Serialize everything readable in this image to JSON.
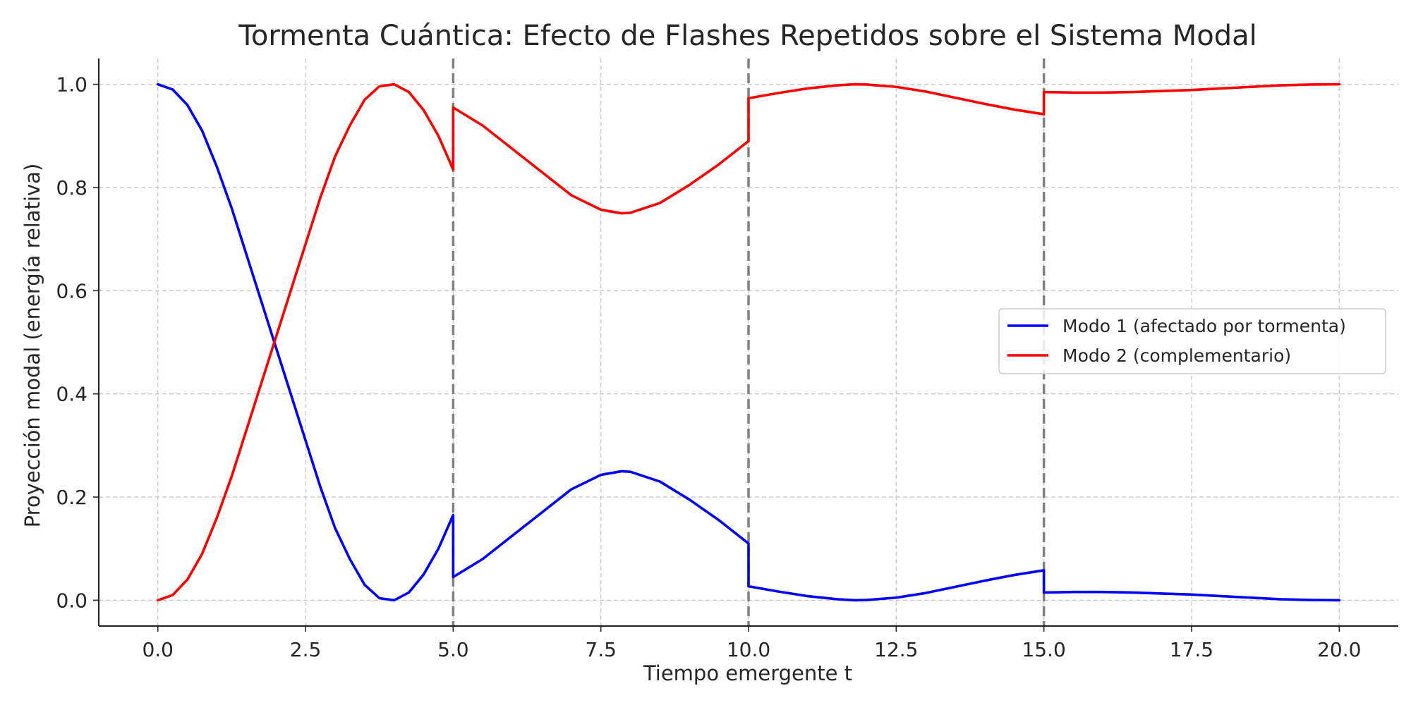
{
  "chart_data": {
    "type": "line",
    "title": "Tormenta Cuántica: Efecto de Flashes Repetidos sobre el Sistema Modal",
    "xlabel": "Tiempo emergente t",
    "ylabel": "Proyección modal (energía relativa)",
    "xlim": [
      -1.0,
      21.0
    ],
    "ylim": [
      -0.05,
      1.05
    ],
    "xticks": [
      0.0,
      2.5,
      5.0,
      7.5,
      10.0,
      12.5,
      15.0,
      17.5,
      20.0
    ],
    "xtick_labels": [
      "0.0",
      "2.5",
      "5.0",
      "7.5",
      "10.0",
      "12.5",
      "15.0",
      "17.5",
      "20.0"
    ],
    "yticks": [
      0.0,
      0.2,
      0.4,
      0.6,
      0.8,
      1.0
    ],
    "ytick_labels": [
      "0.0",
      "0.2",
      "0.4",
      "0.6",
      "0.8",
      "1.0"
    ],
    "grid": true,
    "legend_position": "center-right",
    "flash_times": [
      5.0,
      10.0,
      15.0
    ],
    "flash_color": "#808080",
    "series": [
      {
        "name": "Modo 1 (afectado por tormenta)",
        "color": "#0000ff",
        "segments": [
          {
            "x": [
              0,
              0.25,
              0.5,
              0.75,
              1.0,
              1.25,
              1.5,
              1.75,
              2.0,
              2.25,
              2.5,
              2.75,
              3.0,
              3.25,
              3.5,
              3.75,
              4.0,
              4.25,
              4.5,
              4.75,
              5.0
            ],
            "y": [
              1.0,
              0.99,
              0.96,
              0.91,
              0.84,
              0.76,
              0.67,
              0.58,
              0.49,
              0.4,
              0.31,
              0.22,
              0.14,
              0.08,
              0.03,
              0.004,
              0.0,
              0.015,
              0.05,
              0.1,
              0.165
            ]
          },
          {
            "x": [
              5.0,
              5.5,
              6.0,
              6.5,
              7.0,
              7.5,
              7.85,
              8.0,
              8.5,
              9.0,
              9.5,
              10.0
            ],
            "y": [
              0.045,
              0.08,
              0.125,
              0.17,
              0.215,
              0.243,
              0.25,
              0.249,
              0.23,
              0.195,
              0.155,
              0.11
            ]
          },
          {
            "x": [
              10.0,
              10.5,
              11.0,
              11.5,
              11.8,
              12.0,
              12.5,
              13.0,
              13.5,
              14.0,
              14.5,
              15.0
            ],
            "y": [
              0.027,
              0.017,
              0.008,
              0.002,
              0.0,
              0.0005,
              0.005,
              0.014,
              0.026,
              0.038,
              0.049,
              0.058
            ]
          },
          {
            "x": [
              15.0,
              15.5,
              16.0,
              16.5,
              17.0,
              17.5,
              18.0,
              18.5,
              19.0,
              19.5,
              20.0
            ],
            "y": [
              0.015,
              0.016,
              0.016,
              0.015,
              0.013,
              0.011,
              0.008,
              0.005,
              0.002,
              0.0005,
              0.0
            ]
          }
        ]
      },
      {
        "name": "Modo 2 (complementario)",
        "color": "#ff0000",
        "segments": [
          {
            "x": [
              0,
              0.25,
              0.5,
              0.75,
              1.0,
              1.25,
              1.5,
              1.75,
              2.0,
              2.25,
              2.5,
              2.75,
              3.0,
              3.25,
              3.5,
              3.75,
              4.0,
              4.25,
              4.5,
              4.75,
              5.0
            ],
            "y": [
              0.0,
              0.01,
              0.04,
              0.09,
              0.16,
              0.24,
              0.33,
              0.42,
              0.51,
              0.6,
              0.69,
              0.78,
              0.86,
              0.92,
              0.97,
              0.996,
              1.0,
              0.985,
              0.95,
              0.9,
              0.835
            ]
          },
          {
            "x": [
              5.0,
              5.5,
              6.0,
              6.5,
              7.0,
              7.5,
              7.85,
              8.0,
              8.5,
              9.0,
              9.5,
              10.0
            ],
            "y": [
              0.955,
              0.92,
              0.875,
              0.83,
              0.785,
              0.757,
              0.75,
              0.751,
              0.77,
              0.805,
              0.845,
              0.89
            ]
          },
          {
            "x": [
              10.0,
              10.5,
              11.0,
              11.5,
              11.8,
              12.0,
              12.5,
              13.0,
              13.5,
              14.0,
              14.5,
              15.0
            ],
            "y": [
              0.973,
              0.983,
              0.992,
              0.998,
              1.0,
              0.9995,
              0.995,
              0.986,
              0.974,
              0.962,
              0.951,
              0.942
            ]
          },
          {
            "x": [
              15.0,
              15.5,
              16.0,
              16.5,
              17.0,
              17.5,
              18.0,
              18.5,
              19.0,
              19.5,
              20.0
            ],
            "y": [
              0.985,
              0.984,
              0.984,
              0.985,
              0.987,
              0.989,
              0.992,
              0.995,
              0.998,
              0.9995,
              1.0
            ]
          }
        ]
      }
    ]
  }
}
